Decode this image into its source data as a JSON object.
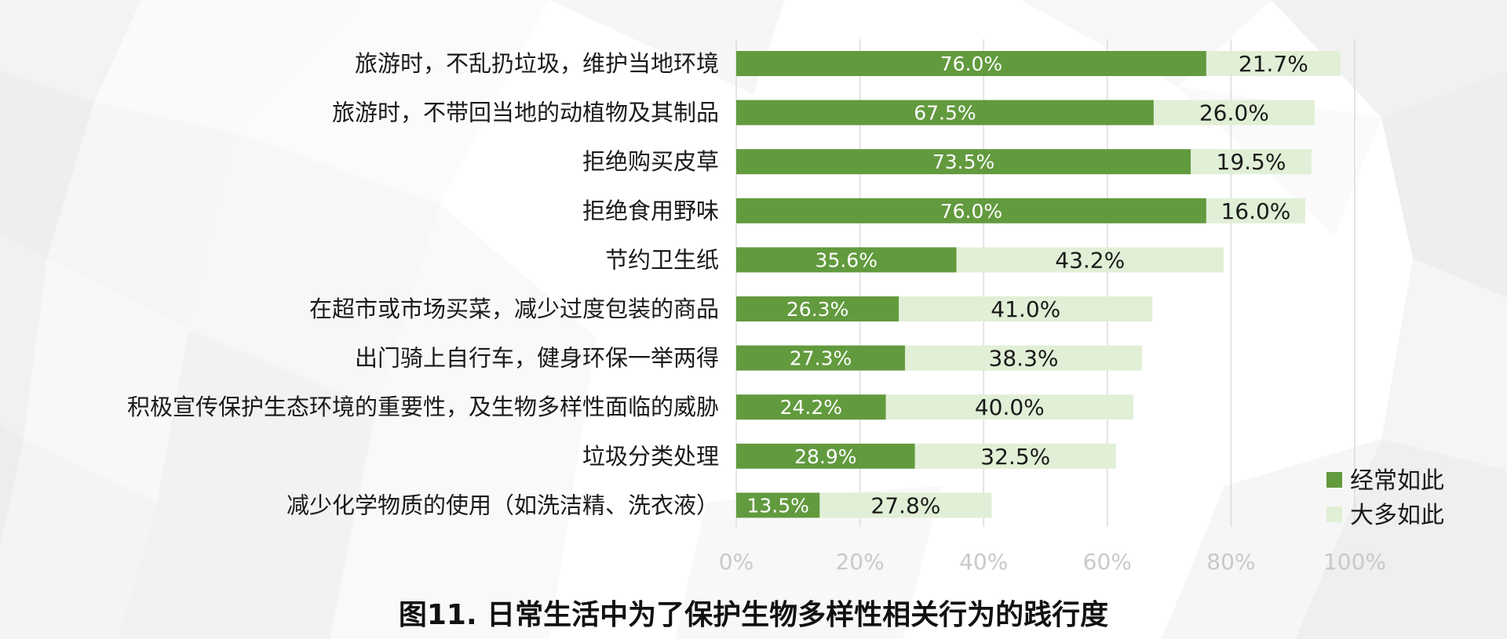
{
  "chart_data": {
    "type": "bar",
    "orientation": "horizontal",
    "stacked": true,
    "title": "图11. 日常生活中为了保护生物多样性相关行为的践行度",
    "categories": [
      "旅游时，不乱扔垃圾，维护当地环境",
      "旅游时，不带回当地的动植物及其制品",
      "拒绝购买皮草",
      "拒绝食用野味",
      "节约卫生纸",
      "在超市或市场买菜，减少过度包装的商品",
      "出门骑上自行车，健身环保一举两得",
      "积极宣传保护生态环境的重要性，及生物多样性面临的威胁",
      "垃圾分类处理",
      "减少化学物质的使用（如洗洁精、洗衣液）"
    ],
    "series": [
      {
        "name": "经常如此",
        "color": "#629a3e",
        "values": [
          76.0,
          67.5,
          73.5,
          76.0,
          35.6,
          26.3,
          27.3,
          24.2,
          28.9,
          13.5
        ],
        "labels": [
          "76.0%",
          "67.5%",
          "73.5%",
          "76.0%",
          "35.6%",
          "26.3%",
          "27.3%",
          "24.2%",
          "28.9%",
          "13.5%"
        ]
      },
      {
        "name": "大多如此",
        "color": "#e1efd6",
        "values": [
          21.7,
          26.0,
          19.5,
          16.0,
          43.2,
          41.0,
          38.3,
          40.0,
          32.5,
          27.8
        ],
        "labels": [
          "21.7%",
          "26.0%",
          "19.5%",
          "16.0%",
          "43.2%",
          "41.0%",
          "38.3%",
          "40.0%",
          "32.5%",
          "27.8%"
        ]
      }
    ],
    "xlim": [
      0,
      100
    ],
    "xticks": [
      "0%",
      "20%",
      "40%",
      "60%",
      "80%",
      "100%"
    ],
    "grid": true,
    "legend_position": "bottom-right"
  }
}
